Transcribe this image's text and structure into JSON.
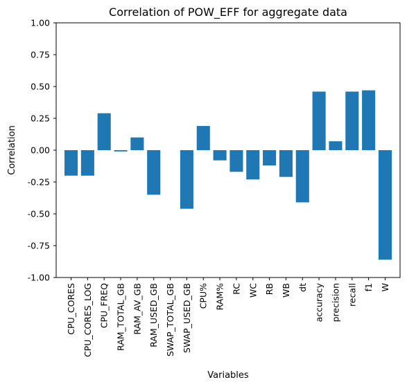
{
  "chart_data": {
    "type": "bar",
    "title": "Correlation of POW_EFF for aggregate data",
    "xlabel": "Variables",
    "ylabel": "Correlation",
    "ylim": [
      -1.0,
      1.0
    ],
    "yticks": [
      "-1.00",
      "-0.75",
      "-0.50",
      "-0.25",
      "0.00",
      "0.25",
      "0.50",
      "0.75",
      "1.00"
    ],
    "ytick_values": [
      -1.0,
      -0.75,
      -0.5,
      -0.25,
      0.0,
      0.25,
      0.5,
      0.75,
      1.0
    ],
    "grid": false,
    "bar_color": "#1f77b4",
    "categories": [
      "CPU_CORES",
      "CPU_CORES_LOG",
      "CPU_FREQ",
      "RAM_TOTAL_GB",
      "RAM_AV_GB",
      "RAM_USED_GB",
      "SWAP_TOTAL_GB",
      "SWAP_USED_GB",
      "CPU%",
      "RAM%",
      "RC",
      "WC",
      "RB",
      "WB",
      "dt",
      "accuracy",
      "precision",
      "recall",
      "f1",
      "W"
    ],
    "values": [
      -0.2,
      -0.2,
      0.29,
      -0.01,
      0.1,
      -0.35,
      0.0,
      -0.46,
      0.19,
      -0.08,
      -0.17,
      -0.23,
      -0.12,
      -0.21,
      -0.41,
      0.46,
      0.07,
      0.46,
      0.47,
      -0.86
    ]
  }
}
